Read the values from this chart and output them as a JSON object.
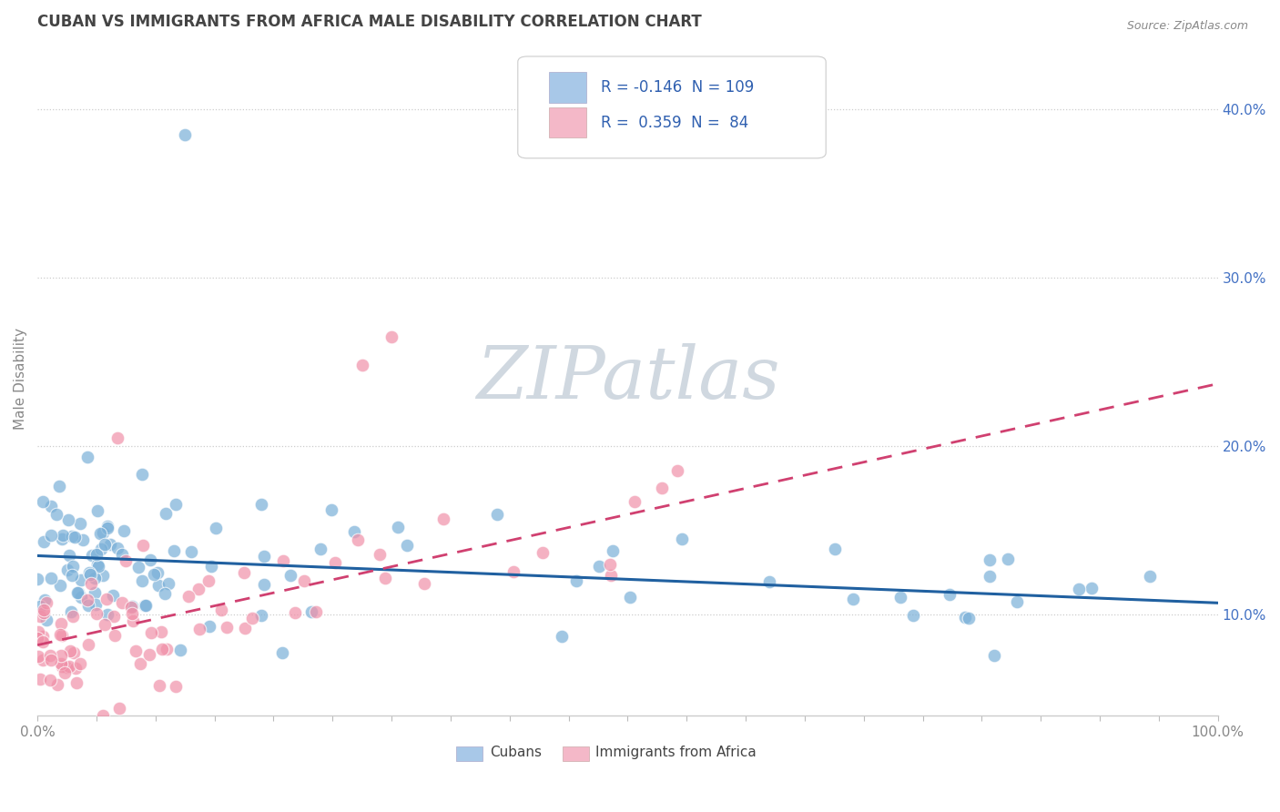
{
  "title": "CUBAN VS IMMIGRANTS FROM AFRICA MALE DISABILITY CORRELATION CHART",
  "source": "Source: ZipAtlas.com",
  "ylabel": "Male Disability",
  "xlim": [
    0.0,
    1.0
  ],
  "ylim": [
    0.04,
    0.44
  ],
  "xticklabels_ends": [
    "0.0%",
    "100.0%"
  ],
  "yticks_right": [
    0.1,
    0.2,
    0.3,
    0.4
  ],
  "yticklabels_right": [
    "10.0%",
    "20.0%",
    "30.0%",
    "40.0%"
  ],
  "legend_R1": "-0.146",
  "legend_N1": "109",
  "legend_R2": "0.359",
  "legend_N2": "84",
  "blue_color": "#a8c8e8",
  "pink_color": "#f4b8c8",
  "blue_scatter_color": "#7ab0d8",
  "pink_scatter_color": "#f090a8",
  "blue_line_color": "#2060a0",
  "pink_line_color": "#d04070",
  "watermark_text": "ZIPatlas",
  "watermark_color": "#d0d8e0",
  "blue_trend_intercept": 0.135,
  "blue_trend_slope": -0.028,
  "pink_trend_intercept": 0.082,
  "pink_trend_slope": 0.155
}
